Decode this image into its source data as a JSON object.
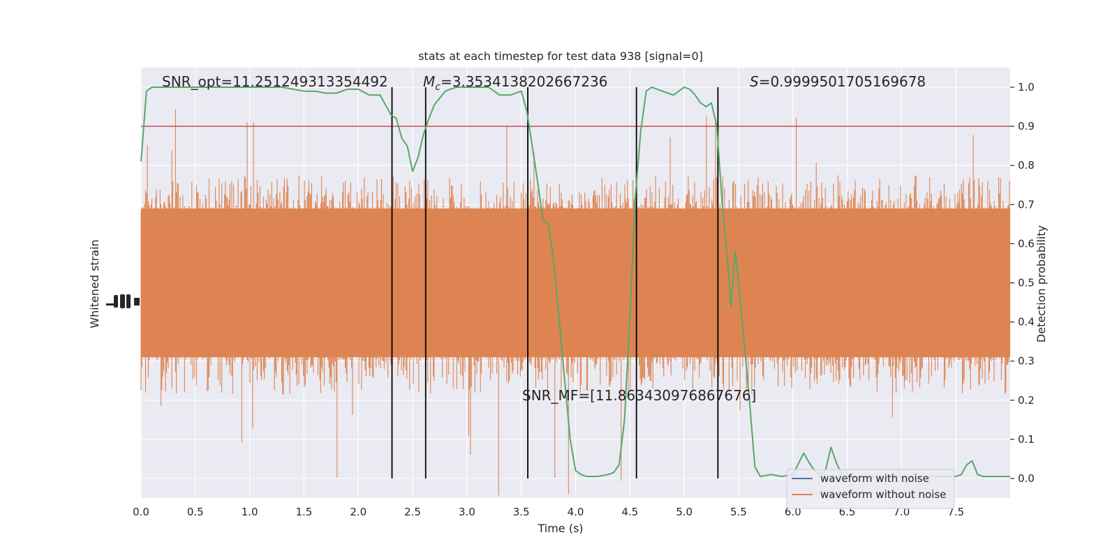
{
  "chart_data": {
    "type": "line",
    "title": "stats at each timestep for test data 938 [signal=0]",
    "xlabel": "Time (s)",
    "ylabel_left": "Whitened strain",
    "ylabel_right": "Detection probability",
    "xlim": [
      0.0,
      8.0
    ],
    "ylim_right": [
      -0.05,
      1.05
    ],
    "x_ticks": [
      "0.0",
      "0.5",
      "1.0",
      "1.5",
      "2.0",
      "2.5",
      "3.0",
      "3.5",
      "4.0",
      "4.5",
      "5.0",
      "5.5",
      "6.0",
      "6.5",
      "7.0",
      "7.5"
    ],
    "y_ticks_right": [
      "0.0",
      "0.1",
      "0.2",
      "0.3",
      "0.4",
      "0.5",
      "0.6",
      "0.7",
      "0.8",
      "0.9",
      "1.0"
    ],
    "grid": true,
    "threshold": 0.9,
    "vertical_markers": [
      2.31,
      2.62,
      3.56,
      4.56,
      5.31
    ],
    "annotations": {
      "snr_opt": "SNR_opt=11.251249313354492",
      "mc_symbol": "M",
      "mc_sub": "c",
      "mc_value": "=3.3534138202667236",
      "s_symbol": "S",
      "s_value": "=0.9999501705169678",
      "snr_mf": "SNR_MF=[11.863430976867676]"
    },
    "legend": {
      "position": "lower-right",
      "entries": [
        "waveform with noise",
        "waveform without noise"
      ]
    },
    "series": [
      {
        "name": "waveform with noise",
        "color": "#4c72b0",
        "note_values": "hidden behind orange trace"
      },
      {
        "name": "waveform without noise",
        "color": "#dd8452"
      },
      {
        "color": "#55a868",
        "x": [
          0.0,
          0.05,
          0.1,
          0.2,
          0.3,
          0.4,
          0.5,
          0.6,
          0.7,
          0.8,
          0.9,
          1.0,
          1.1,
          1.2,
          1.3,
          1.4,
          1.5,
          1.6,
          1.7,
          1.8,
          1.9,
          2.0,
          2.1,
          2.2,
          2.3,
          2.35,
          2.4,
          2.45,
          2.5,
          2.55,
          2.6,
          2.65,
          2.7,
          2.8,
          2.9,
          3.0,
          3.1,
          3.2,
          3.3,
          3.4,
          3.5,
          3.55,
          3.6,
          3.65,
          3.7,
          3.75,
          3.8,
          3.85,
          3.9,
          3.95,
          4.0,
          4.05,
          4.1,
          4.2,
          4.3,
          4.35,
          4.4,
          4.45,
          4.5,
          4.55,
          4.6,
          4.65,
          4.7,
          4.8,
          4.9,
          5.0,
          5.05,
          5.1,
          5.15,
          5.2,
          5.25,
          5.3,
          5.35,
          5.4,
          5.43,
          5.47,
          5.5,
          5.55,
          5.6,
          5.65,
          5.7,
          5.8,
          5.9,
          6.0,
          6.1,
          6.15,
          6.2,
          6.25,
          6.3,
          6.35,
          6.4,
          6.45,
          6.5,
          6.6,
          6.7,
          6.8,
          6.9,
          7.0,
          7.1,
          7.2,
          7.3,
          7.4,
          7.5,
          7.55,
          7.6,
          7.65,
          7.7,
          7.75,
          7.8,
          7.9,
          8.0
        ],
        "y": [
          0.81,
          0.99,
          1.0,
          1.0,
          1.0,
          1.0,
          1.0,
          1.0,
          1.0,
          1.0,
          1.0,
          1.0,
          1.0,
          1.0,
          1.0,
          0.995,
          0.99,
          0.99,
          0.985,
          0.985,
          0.995,
          0.995,
          0.98,
          0.98,
          0.93,
          0.92,
          0.87,
          0.85,
          0.785,
          0.82,
          0.88,
          0.92,
          0.955,
          0.99,
          1.0,
          1.0,
          1.0,
          1.0,
          0.98,
          0.98,
          0.99,
          0.94,
          0.85,
          0.76,
          0.66,
          0.65,
          0.55,
          0.4,
          0.25,
          0.1,
          0.02,
          0.01,
          0.005,
          0.005,
          0.01,
          0.015,
          0.035,
          0.15,
          0.41,
          0.72,
          0.89,
          0.99,
          1.0,
          0.99,
          0.98,
          1.0,
          0.995,
          0.98,
          0.96,
          0.95,
          0.96,
          0.9,
          0.7,
          0.55,
          0.44,
          0.58,
          0.5,
          0.35,
          0.2,
          0.03,
          0.005,
          0.01,
          0.005,
          0.01,
          0.065,
          0.04,
          0.02,
          0.01,
          0.02,
          0.08,
          0.04,
          0.01,
          0.005,
          0.005,
          0.005,
          0.005,
          0.005,
          0.005,
          0.005,
          0.005,
          0.005,
          0.005,
          0.005,
          0.01,
          0.035,
          0.045,
          0.01,
          0.005,
          0.005,
          0.005,
          0.005
        ]
      }
    ]
  },
  "colors": {
    "background": "#eaeaf2",
    "grid": "#ffffff",
    "threshold": "#c44e52",
    "marker": "#000000",
    "noise_trace": "#dd8452",
    "probability": "#55a868",
    "legend_blue": "#4c72b0"
  }
}
